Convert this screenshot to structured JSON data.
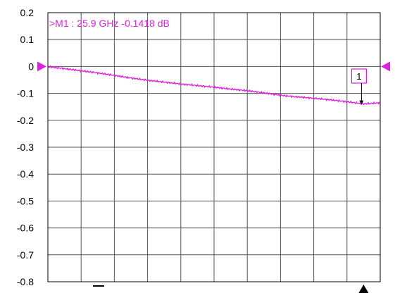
{
  "colors": {
    "trace": "#e020e0",
    "grid": "#555555",
    "frame": "#000000",
    "background": "#ffffff"
  },
  "marker": {
    "readout": ">M1 :  25.9 GHz  -0.1418  dB",
    "box_label": "1",
    "x_fraction": 0.95,
    "value_db": -0.1418
  },
  "chart_data": {
    "type": "line",
    "title": "",
    "xlabel": "",
    "ylabel": "",
    "ylim": [
      -0.8,
      0.2
    ],
    "yticks": [
      "0.2",
      "0.1",
      "0",
      "-0.1",
      "-0.2",
      "-0.3",
      "-0.4",
      "-0.5",
      "-0.6",
      "-0.7",
      "-0.8"
    ],
    "x_divisions": 10,
    "grid": true,
    "reference_level": 0,
    "series": [
      {
        "x_fraction": [
          0,
          0.05,
          0.1,
          0.15,
          0.2,
          0.25,
          0.3,
          0.35,
          0.4,
          0.45,
          0.5,
          0.55,
          0.6,
          0.65,
          0.7,
          0.75,
          0.8,
          0.85,
          0.9,
          0.95,
          1.0
        ],
        "values": [
          -0.001,
          -0.008,
          -0.016,
          -0.024,
          -0.033,
          -0.043,
          -0.051,
          -0.058,
          -0.065,
          -0.071,
          -0.077,
          -0.084,
          -0.09,
          -0.098,
          -0.107,
          -0.113,
          -0.118,
          -0.124,
          -0.131,
          -0.139,
          -0.135
        ]
      }
    ]
  }
}
